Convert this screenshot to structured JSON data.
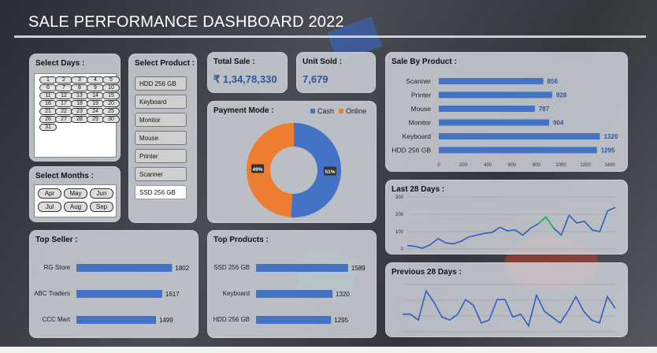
{
  "title": "SALE PERFORMANCE DASHBOARD 2022",
  "colors": {
    "bar": "#4472c4",
    "cash": "#4472c4",
    "online": "#ed7d31",
    "line": "#2f5fbf",
    "accent": "#2fb04a"
  },
  "select_days": {
    "label": "Select Days :",
    "days": [
      "1",
      "2",
      "3",
      "4",
      "5",
      "6",
      "7",
      "8",
      "9",
      "10",
      "11",
      "12",
      "13",
      "14",
      "15",
      "16",
      "17",
      "18",
      "19",
      "20",
      "21",
      "22",
      "23",
      "24",
      "25",
      "26",
      "27",
      "28",
      "29",
      "30",
      "31"
    ]
  },
  "select_product": {
    "label": "Select Product :",
    "items": [
      "HDD 256 GB",
      "Keyboard",
      "Monitor",
      "Mouse",
      "Printer",
      "Scanner",
      "SSD 256 GB"
    ],
    "selected_index": 6
  },
  "select_months": {
    "label": "Select Months :",
    "items": [
      "Apr",
      "May",
      "Jun",
      "Jul",
      "Aug",
      "Sep"
    ]
  },
  "total_sale": {
    "label": "Total Sale :",
    "value": "₹ 1,34,78,330"
  },
  "unit_sold": {
    "label": "Unit Sold :",
    "value": "7,679"
  },
  "payment_mode": {
    "label": "Payment Mode :",
    "legend": [
      "Cash",
      "Online"
    ],
    "chart_data": {
      "type": "pie",
      "labels": [
        "Cash",
        "Online"
      ],
      "values": [
        51,
        49
      ],
      "value_labels": [
        "51%",
        "49%"
      ]
    }
  },
  "sale_by_product": {
    "label": "Sale By Product :",
    "chart_data": {
      "type": "bar",
      "orientation": "horizontal",
      "categories": [
        "Scanner",
        "Printer",
        "Mouse",
        "Monitor",
        "Keyboard",
        "HDD 256 GB"
      ],
      "values": [
        856,
        928,
        787,
        904,
        1320,
        1295
      ],
      "xlim": [
        0,
        1400
      ],
      "xticks": [
        "0",
        "200",
        "400",
        "600",
        "800",
        "1000",
        "1200",
        "1400"
      ]
    }
  },
  "last_28_days": {
    "label": "Last 28 Days :",
    "chart_data": {
      "type": "line",
      "yticks": [
        "0",
        "100",
        "200",
        "300"
      ],
      "ylim": [
        0,
        300
      ],
      "values": [
        20,
        15,
        5,
        25,
        60,
        35,
        30,
        45,
        70,
        80,
        90,
        95,
        125,
        105,
        110,
        80,
        120,
        145,
        185,
        120,
        80,
        195,
        150,
        160,
        110,
        100,
        220,
        240
      ],
      "highlight_range": [
        17,
        19
      ]
    }
  },
  "top_seller": {
    "label": "Top Seller :",
    "chart_data": {
      "type": "bar",
      "orientation": "horizontal",
      "categories": [
        "RG Store",
        "ABC Traders",
        "CCC Mart"
      ],
      "values": [
        1802,
        1617,
        1499
      ],
      "xlim": [
        0,
        1900
      ]
    }
  },
  "top_products": {
    "label": "Top Products :",
    "chart_data": {
      "type": "bar",
      "orientation": "horizontal",
      "categories": [
        "SSD 256 GB",
        "Keyboard",
        "HDD 256 GB"
      ],
      "values": [
        1589,
        1320,
        1295
      ],
      "xlim": [
        0,
        1700
      ]
    }
  },
  "previous_28_days": {
    "label": "Previous 28 Days :",
    "chart_data": {
      "type": "line",
      "values": [
        12,
        12,
        8,
        28,
        20,
        10,
        8,
        12,
        22,
        18,
        6,
        8,
        22,
        22,
        10,
        12,
        4,
        25,
        14,
        10,
        6,
        14,
        24,
        14,
        8,
        6,
        24,
        16
      ],
      "gridlines": 4
    }
  }
}
